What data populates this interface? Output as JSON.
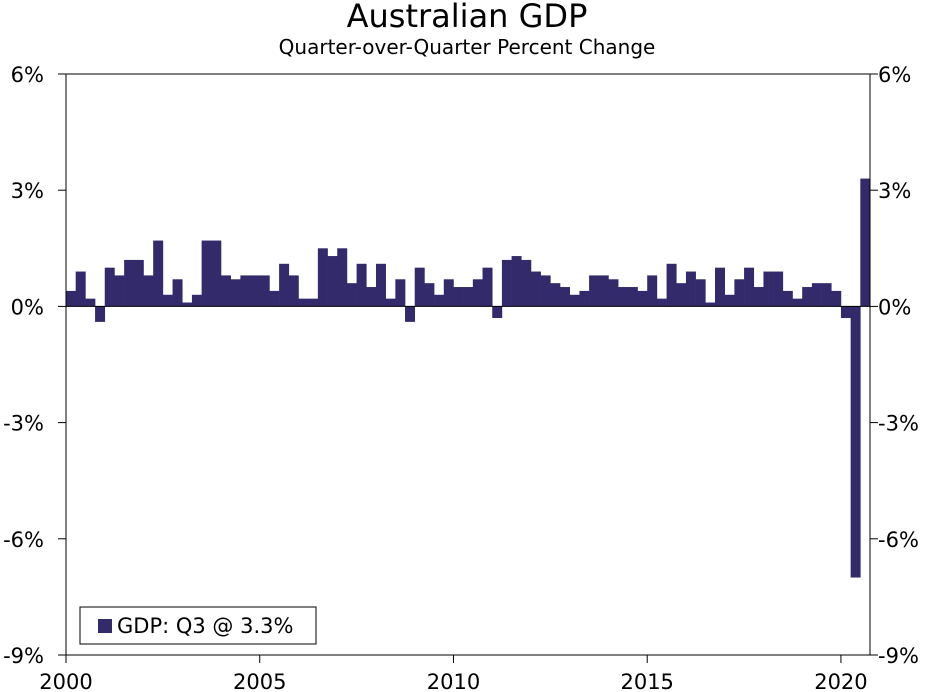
{
  "chart_data": {
    "type": "bar",
    "title": "Australian GDP",
    "subtitle": "Quarter-over-Quarter Percent Change",
    "xlabel": "",
    "ylabel": "",
    "ylim": [
      -9,
      6
    ],
    "y_ticks": [
      6,
      3,
      0,
      -3,
      -6,
      -9
    ],
    "y_tick_labels": [
      "6%",
      "3%",
      "0%",
      "-3%",
      "-6%",
      "-9%"
    ],
    "x_range": [
      2000,
      2020.75
    ],
    "x_ticks": [
      2000,
      2005,
      2010,
      2015,
      2020
    ],
    "x_tick_labels": [
      "2000",
      "2005",
      "2010",
      "2015",
      "2020"
    ],
    "start_quarter": "2000 Q1",
    "series": [
      {
        "name": "GDP",
        "values": [
          0.4,
          0.9,
          0.2,
          -0.4,
          1.0,
          0.8,
          1.2,
          1.2,
          0.8,
          1.7,
          0.3,
          0.7,
          0.1,
          0.3,
          1.7,
          1.7,
          0.8,
          0.7,
          0.8,
          0.8,
          0.8,
          0.4,
          1.1,
          0.8,
          0.2,
          0.2,
          1.5,
          1.3,
          1.5,
          0.6,
          1.1,
          0.5,
          1.1,
          0.2,
          0.7,
          -0.4,
          1.0,
          0.6,
          0.3,
          0.7,
          0.5,
          0.5,
          0.7,
          1.0,
          -0.3,
          1.2,
          1.3,
          1.2,
          0.9,
          0.8,
          0.6,
          0.5,
          0.3,
          0.4,
          0.8,
          0.8,
          0.7,
          0.5,
          0.5,
          0.4,
          0.8,
          0.2,
          1.1,
          0.6,
          0.9,
          0.7,
          0.1,
          1.0,
          0.3,
          0.7,
          1.0,
          0.5,
          0.9,
          0.9,
          0.4,
          0.2,
          0.5,
          0.6,
          0.6,
          0.4,
          -0.3,
          -7.0,
          3.3
        ]
      }
    ],
    "legend": {
      "label": "GDP: Q3 @ 3.3%",
      "position": "bottom-left"
    },
    "colors": {
      "bar": "#332a6b",
      "axis": "#000000",
      "background": "#ffffff"
    }
  }
}
